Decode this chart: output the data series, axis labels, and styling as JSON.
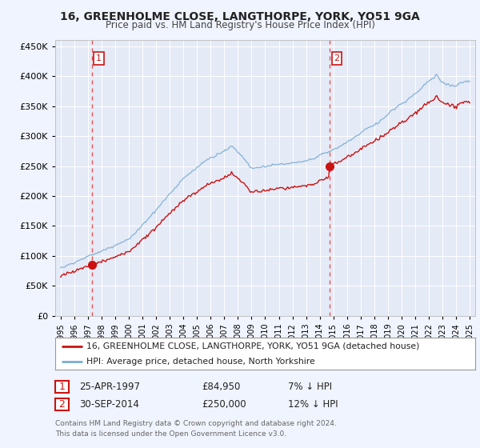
{
  "title": "16, GREENHOLME CLOSE, LANGTHORPE, YORK, YO51 9GA",
  "subtitle": "Price paid vs. HM Land Registry's House Price Index (HPI)",
  "legend_line1": "16, GREENHOLME CLOSE, LANGTHORPE, YORK, YO51 9GA (detached house)",
  "legend_line2": "HPI: Average price, detached house, North Yorkshire",
  "sale1_date": "25-APR-1997",
  "sale1_price": "£84,950",
  "sale1_hpi": "7% ↓ HPI",
  "sale1_year": 1997.29,
  "sale1_value": 84950,
  "sale2_date": "30-SEP-2014",
  "sale2_price": "£250,000",
  "sale2_hpi": "12% ↓ HPI",
  "sale2_year": 2014.75,
  "sale2_value": 250000,
  "hpi_color": "#7aadd4",
  "price_color": "#cc1111",
  "dashed_line_color": "#ee4444",
  "background_color": "#f0f4ff",
  "plot_bg_color": "#e4eaf6",
  "grid_color": "#ffffff",
  "footer": "Contains HM Land Registry data © Crown copyright and database right 2024.\nThis data is licensed under the Open Government Licence v3.0.",
  "ylim": [
    0,
    460000
  ],
  "yticks": [
    0,
    50000,
    100000,
    150000,
    200000,
    250000,
    300000,
    350000,
    400000,
    450000
  ],
  "xlim": [
    1994.6,
    2025.4
  ],
  "xticks": [
    1995,
    1996,
    1997,
    1998,
    1999,
    2000,
    2001,
    2002,
    2003,
    2004,
    2005,
    2006,
    2007,
    2008,
    2009,
    2010,
    2011,
    2012,
    2013,
    2014,
    2015,
    2016,
    2017,
    2018,
    2019,
    2020,
    2021,
    2022,
    2023,
    2024,
    2025
  ]
}
